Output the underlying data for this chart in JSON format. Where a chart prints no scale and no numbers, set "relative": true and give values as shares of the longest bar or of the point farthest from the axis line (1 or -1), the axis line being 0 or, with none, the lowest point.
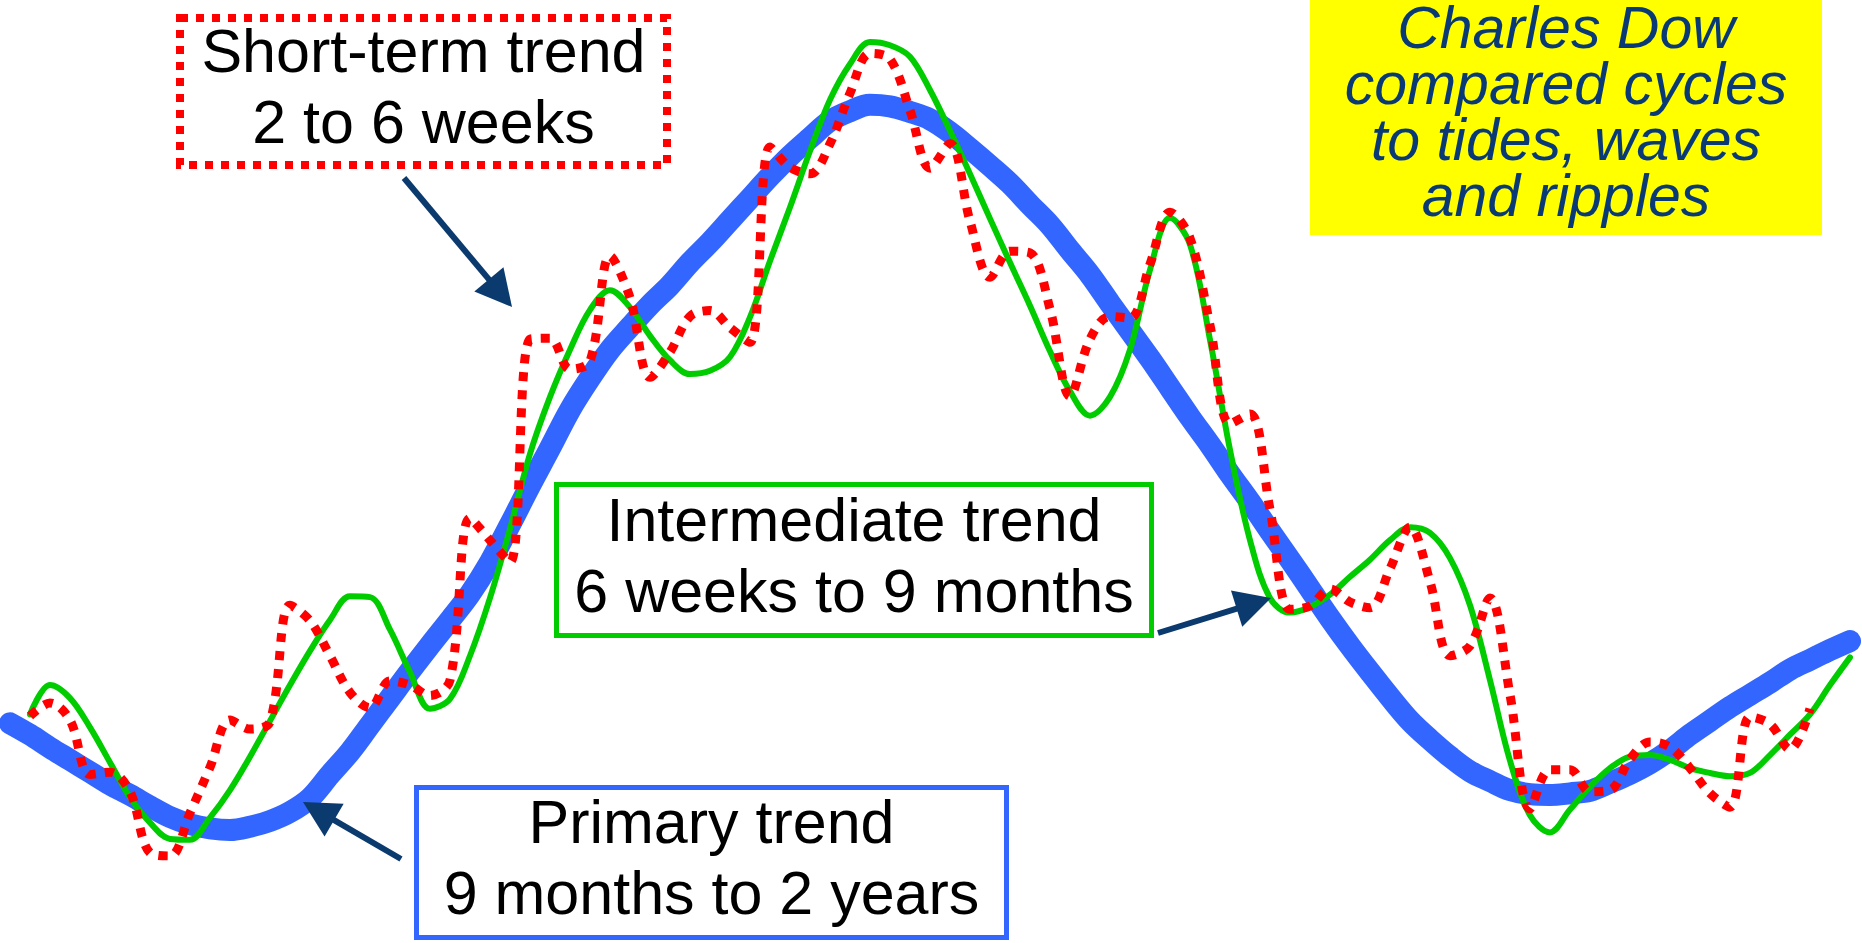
{
  "chart_data": {
    "type": "line",
    "relative": true,
    "marker": "none",
    "categories": [
      null,
      null,
      null,
      null,
      null,
      null,
      null,
      null,
      null,
      null,
      null,
      null,
      null,
      null,
      null,
      null,
      null,
      null,
      null,
      null,
      null,
      null,
      null,
      null,
      null,
      null,
      null,
      null,
      null,
      null,
      null,
      null,
      null,
      null,
      null,
      null,
      null,
      null,
      null,
      null,
      null,
      null,
      null,
      null,
      null,
      null,
      null,
      null,
      null,
      null,
      null,
      null,
      null,
      null,
      null,
      null,
      null,
      null,
      null,
      null,
      null,
      null,
      null,
      null,
      null,
      null,
      null,
      null,
      null,
      null,
      null,
      null,
      null,
      null,
      null,
      null,
      null,
      null,
      null,
      null,
      null,
      null,
      null,
      null,
      null,
      null,
      null,
      null,
      null,
      null,
      null,
      null,
      null
    ],
    "series": [
      {
        "name": "Primary trend\n9 months to 2 years",
        "color": "#3366ff",
        "line_style": "solid",
        "values": [
          0.163,
          0.149,
          0.133,
          0.118,
          0.103,
          0.088,
          0.075,
          0.061,
          0.048,
          0.039,
          0.034,
          0.032,
          0.036,
          0.043,
          0.054,
          0.071,
          0.1,
          0.128,
          0.161,
          0.194,
          0.227,
          0.259,
          0.29,
          0.322,
          0.361,
          0.407,
          0.455,
          0.501,
          0.548,
          0.587,
          0.622,
          0.65,
          0.677,
          0.701,
          0.729,
          0.754,
          0.781,
          0.808,
          0.835,
          0.86,
          0.882,
          0.903,
          0.915,
          0.923,
          0.921,
          0.914,
          0.905,
          0.889,
          0.869,
          0.848,
          0.826,
          0.8,
          0.775,
          0.744,
          0.714,
          0.679,
          0.645,
          0.611,
          0.575,
          0.539,
          0.505,
          0.469,
          0.435,
          0.399,
          0.364,
          0.328,
          0.292,
          0.258,
          0.226,
          0.195,
          0.166,
          0.143,
          0.122,
          0.104,
          0.092,
          0.081,
          0.076,
          0.075,
          0.077,
          0.08,
          0.09,
          0.101,
          0.114,
          0.13,
          0.149,
          0.166,
          0.183,
          0.198,
          0.213,
          0.229,
          0.241,
          0.253,
          0.264
        ]
      },
      {
        "name": "Intermediate trend\n6 weeks to 9 months",
        "color": "#00cc00",
        "line_style": "solid",
        "values": [
          null,
          0.174,
          0.21,
          0.194,
          0.158,
          0.115,
          0.072,
          0.041,
          0.021,
          0.02,
          0.047,
          0.081,
          0.122,
          0.166,
          0.21,
          0.252,
          0.29,
          0.319,
          0.318,
          0.278,
          0.226,
          0.181,
          0.193,
          0.246,
          0.317,
          0.402,
          0.494,
          0.564,
          0.622,
          0.671,
          0.695,
          0.674,
          0.639,
          0.609,
          0.592,
          0.596,
          0.613,
          0.662,
          0.731,
          0.797,
          0.866,
          0.929,
          0.973,
          1,
          0.996,
          0.982,
          0.941,
          0.891,
          0.838,
          0.783,
          0.729,
          0.676,
          0.62,
          0.571,
          0.541,
          0.564,
          0.622,
          0.72,
          0.784,
          0.751,
          0.634,
          0.499,
          0.388,
          0.317,
          0.299,
          0.306,
          0.321,
          0.343,
          0.364,
          0.388,
          0.404,
          0.397,
          0.366,
          0.308,
          0.216,
          0.117,
          0.05,
          0.029,
          0.057,
          0.085,
          0.108,
          0.122,
          0.124,
          0.118,
          0.108,
          0.102,
          0.098,
          0.102,
          0.124,
          0.149,
          0.174,
          0.21,
          0.244
        ]
      },
      {
        "name": "Short-term trend\n2 to 6 weeks",
        "color": "#ff0000",
        "line_style": "dotted",
        "values": [
          null,
          0.172,
          0.188,
          0.167,
          0.1,
          0.103,
          0.079,
          0.004,
          0,
          0.053,
          0.109,
          0.167,
          0.156,
          0.165,
          0.308,
          0.289,
          0.246,
          0.201,
          0.182,
          0.215,
          0.21,
          0.197,
          0.216,
          0.415,
          0.388,
          0.361,
          0.635,
          0.636,
          0.598,
          0.608,
          0.737,
          0.686,
          0.588,
          0.619,
          0.663,
          0.67,
          0.649,
          0.631,
          0.871,
          0.846,
          0.838,
          0.875,
          0.937,
          0.986,
          0.979,
          0.916,
          0.845,
          0.875,
          0.78,
          0.711,
          0.743,
          0.741,
          0.672,
          0.565,
          0.635,
          0.663,
          0.661,
          0.727,
          0.791,
          0.759,
          0.652,
          0.531,
          0.543,
          0.426,
          0.303,
          0.307,
          0.328,
          0.312,
          0.305,
          0.353,
          0.404,
          0.337,
          0.246,
          0.258,
          0.317,
          0.198,
          0.058,
          0.106,
          0.106,
          0.079,
          0.081,
          0.119,
          0.14,
          0.134,
          0.108,
          0.077,
          0.06,
          0.171,
          0.162,
          0.131,
          0.181,
          null,
          null
        ]
      }
    ],
    "annotations": [
      "Charles Dow\ncompared cycles\nto tides, waves\nand ripples"
    ]
  }
}
